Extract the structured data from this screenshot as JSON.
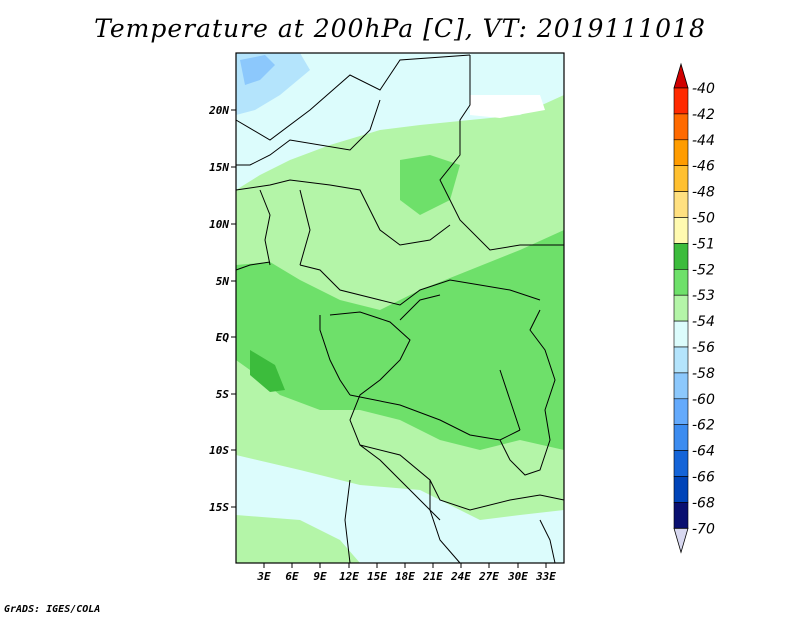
{
  "title": "Temperature at 200hPa [C], VT: 2019111018",
  "credit": "GrADS: IGES/COLA",
  "lat_labels": [
    "20N",
    "15N",
    "10N",
    "5N",
    "EQ",
    "5S",
    "10S",
    "15S"
  ],
  "lon_labels": [
    "3E",
    "6E",
    "9E",
    "12E",
    "15E",
    "18E",
    "21E",
    "24E",
    "27E",
    "30E",
    "33E"
  ],
  "colorbar": {
    "labels": [
      "-40",
      "-42",
      "-44",
      "-46",
      "-48",
      "-50",
      "-51",
      "-52",
      "-53",
      "-54",
      "-56",
      "-58",
      "-60",
      "-62",
      "-64",
      "-66",
      "-68",
      "-70"
    ],
    "colors": [
      "#e00000",
      "#ff2a00",
      "#ff6a00",
      "#ff9c00",
      "#ffc030",
      "#ffe080",
      "#fffab0",
      "#3cbc3c",
      "#6ee06a",
      "#b4f5a8",
      "#dcfcfc",
      "#b4e4fc",
      "#8cc8fc",
      "#64aafc",
      "#3c8cf0",
      "#1464d8",
      "#0044b8",
      "#0a1070"
    ],
    "top_color": "#d00000",
    "bottom_color": "#d8d8f0"
  },
  "field_colors": {
    "c53": "#b4f5a8",
    "c52": "#6ee06a",
    "c51": "#3cbc3c",
    "c54": "#dcfcfc",
    "c56": "#b4e4fc",
    "c58": "#8cc8fc"
  }
}
